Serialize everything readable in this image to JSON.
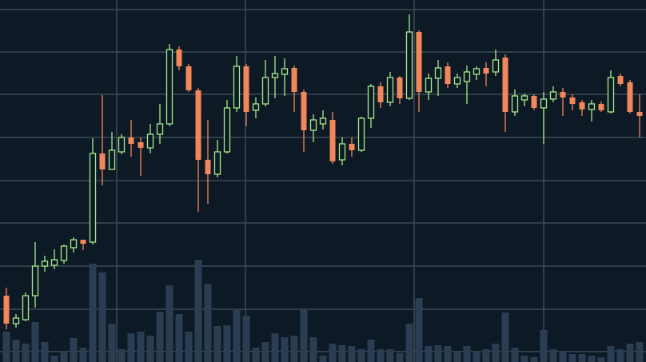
{
  "chart_data": {
    "type": "candlestick",
    "ylim": [
      0,
      453
    ],
    "yticks": [
      13,
      66,
      120,
      174,
      227,
      281,
      335,
      388,
      441
    ],
    "grid": true,
    "up_color": "#a6ea8c",
    "down_color": "#f2875c",
    "volume_color": "#2b3d52",
    "grid_color": "#3b4a57",
    "open": [
      83,
      48,
      53,
      83,
      120,
      121,
      127,
      143,
      153,
      150,
      261,
      241,
      263,
      281,
      275,
      268,
      285,
      298,
      391,
      370,
      340,
      253,
      235,
      263,
      318,
      370,
      315,
      323,
      356,
      360,
      368,
      338,
      290,
      298,
      303,
      253,
      273,
      265,
      305,
      345,
      325,
      356,
      330,
      413,
      338,
      355,
      370,
      348,
      351,
      360,
      368,
      363,
      381,
      313,
      328,
      333,
      318,
      329,
      338,
      331,
      325,
      316,
      323,
      313,
      358,
      350,
      313
    ],
    "high": [
      93,
      60,
      87,
      150,
      133,
      141,
      147,
      156,
      153,
      280,
      334,
      288,
      285,
      303,
      281,
      298,
      323,
      398,
      395,
      373,
      343,
      303,
      278,
      328,
      383,
      373,
      331,
      378,
      383,
      380,
      371,
      341,
      310,
      315,
      313,
      281,
      281,
      307,
      348,
      350,
      363,
      358,
      435,
      415,
      361,
      378,
      375,
      361,
      371,
      370,
      375,
      391,
      385,
      341,
      336,
      335,
      338,
      345,
      343,
      335,
      328,
      328,
      326,
      365,
      361,
      353,
      335
    ],
    "low": [
      41,
      43,
      51,
      68,
      113,
      116,
      123,
      137,
      140,
      147,
      221,
      241,
      260,
      257,
      233,
      261,
      273,
      295,
      365,
      338,
      188,
      198,
      231,
      261,
      313,
      295,
      305,
      320,
      330,
      333,
      313,
      263,
      275,
      291,
      248,
      246,
      257,
      263,
      293,
      318,
      320,
      323,
      328,
      313,
      328,
      333,
      343,
      343,
      323,
      353,
      345,
      358,
      288,
      308,
      320,
      315,
      273,
      325,
      308,
      315,
      308,
      301,
      313,
      311,
      345,
      311,
      281
    ],
    "close": [
      48,
      55,
      83,
      120,
      126,
      128,
      145,
      153,
      148,
      261,
      241,
      265,
      281,
      273,
      268,
      285,
      298,
      391,
      370,
      340,
      253,
      235,
      263,
      318,
      370,
      313,
      323,
      356,
      361,
      367,
      338,
      290,
      303,
      305,
      251,
      273,
      265,
      305,
      345,
      325,
      356,
      330,
      413,
      338,
      355,
      368,
      348,
      356,
      363,
      367,
      361,
      378,
      313,
      333,
      333,
      318,
      329,
      338,
      331,
      323,
      316,
      323,
      315,
      356,
      348,
      313,
      308
    ],
    "volume": [
      38,
      28,
      23,
      50,
      25,
      8,
      13,
      30,
      18,
      123,
      112,
      48,
      16,
      36,
      38,
      33,
      63,
      96,
      60,
      38,
      128,
      98,
      45,
      46,
      66,
      58,
      18,
      25,
      36,
      31,
      33,
      66,
      31,
      8,
      23,
      21,
      20,
      16,
      28,
      16,
      16,
      11,
      48,
      80,
      20,
      21,
      20,
      13,
      20,
      13,
      16,
      23,
      62,
      18,
      8,
      6,
      40,
      16,
      13,
      10,
      10,
      8,
      6,
      20,
      16,
      23,
      25
    ]
  }
}
